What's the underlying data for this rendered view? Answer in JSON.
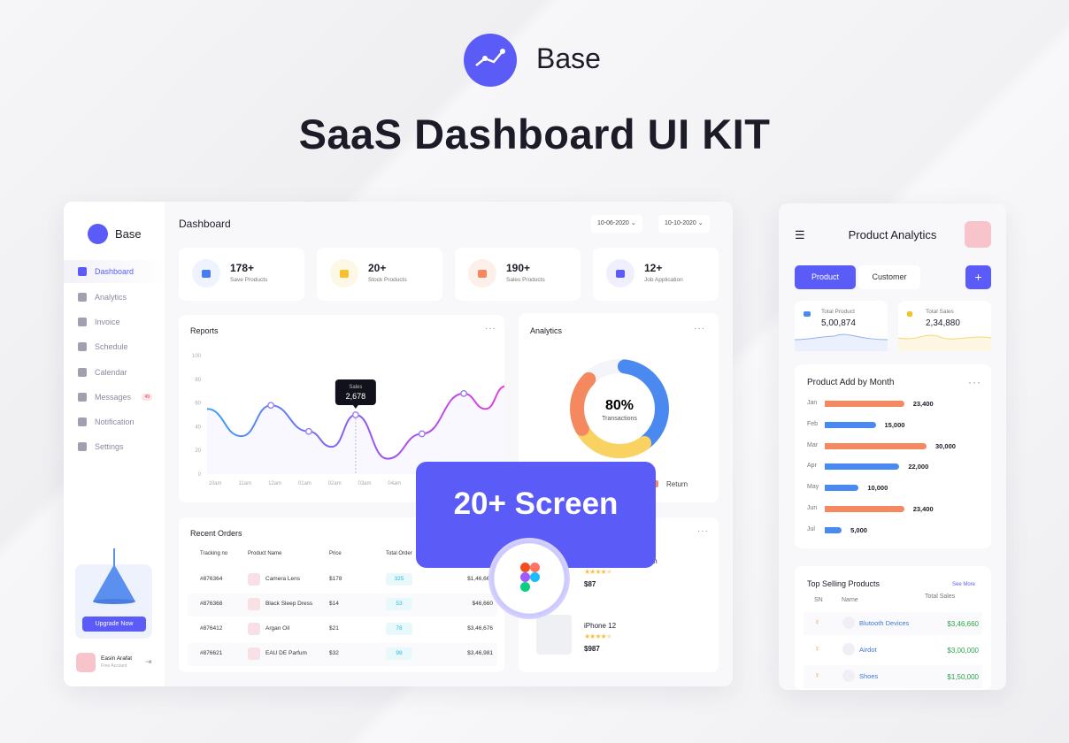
{
  "brand": {
    "name": "Base",
    "headline": "SaaS Dashboard UI KIT",
    "accent": "#5b5bf7"
  },
  "sidebar": {
    "logo": "Base",
    "items": [
      {
        "label": "Dashboard",
        "icon": "grid-icon",
        "active": true
      },
      {
        "label": "Analytics",
        "icon": "bar-chart-icon"
      },
      {
        "label": "Invoice",
        "icon": "invoice-icon"
      },
      {
        "label": "Schedule",
        "icon": "schedule-icon"
      },
      {
        "label": "Calendar",
        "icon": "calendar-icon"
      },
      {
        "label": "Messages",
        "icon": "messages-icon",
        "badge": "49"
      },
      {
        "label": "Notification",
        "icon": "bell-icon"
      },
      {
        "label": "Settings",
        "icon": "gear-icon"
      }
    ],
    "upgrade_label": "Upgrade Now",
    "user": {
      "name": "Easin Arafat",
      "plan": "Free Account"
    }
  },
  "header": {
    "title": "Dashboard",
    "date_from": "10-06-2020",
    "date_to": "10-10-2020"
  },
  "stats": [
    {
      "value": "178+",
      "label": "Save Products",
      "icon": "heart-icon",
      "color": "#4a7cf0",
      "bg": "#eef3fd"
    },
    {
      "value": "20+",
      "label": "Stock Products",
      "icon": "box-icon",
      "color": "#f6c02e",
      "bg": "#fdf8e6"
    },
    {
      "value": "190+",
      "label": "Sales Products",
      "icon": "bag-icon",
      "color": "#f4895f",
      "bg": "#fdf0eb"
    },
    {
      "value": "12+",
      "label": "Job Application",
      "icon": "briefcase-icon",
      "color": "#5b5bf7",
      "bg": "#efeffd"
    }
  ],
  "reports": {
    "title": "Reports",
    "menu": "···"
  },
  "chart_data": [
    {
      "type": "line",
      "title": "Reports",
      "yticks": [
        "0",
        "20",
        "40",
        "60",
        "80",
        "100"
      ],
      "ylim": [
        0,
        100
      ],
      "xticks": [
        "10am",
        "11am",
        "12am",
        "01am",
        "02am",
        "03am",
        "04am"
      ],
      "points": [
        {
          "x": "09:44am",
          "y": 55
        },
        {
          "x": "10:53am",
          "y": 32
        },
        {
          "x": "11:52am",
          "y": 58,
          "marker": true
        },
        {
          "x": "01:08am",
          "y": 36,
          "marker": true
        },
        {
          "x": "01:54am",
          "y": 23
        },
        {
          "x": "02:42am",
          "y": 50,
          "marker": true
        },
        {
          "x": "03:46am",
          "y": 13
        },
        {
          "x": "04:55am",
          "y": 34,
          "marker": true
        },
        {
          "x": "06:19am",
          "y": 68,
          "marker": true
        },
        {
          "x": "07:03am",
          "y": 55
        },
        {
          "x": "07:42am",
          "y": 74
        }
      ],
      "tooltip": {
        "label": "Sales",
        "value": "2,678",
        "at": "02:42am"
      },
      "gradient": [
        "#3fa0f0",
        "#8a5cf0",
        "#e040e0"
      ],
      "grid": false
    },
    {
      "type": "pie",
      "title": "Analytics",
      "center_value": "80%",
      "center_label": "Transactions",
      "segments": [
        {
          "percent": 38,
          "color": "#4a8af0"
        },
        {
          "percent": 27,
          "color": "#f9d262"
        },
        {
          "percent": 20,
          "color": "#f4895f",
          "name": "Return"
        }
      ]
    },
    {
      "type": "bar",
      "orientation": "horizontal",
      "title": "Product Add  by Month",
      "categories": [
        "Jan",
        "Feb",
        "Mar",
        "Apr",
        "May",
        "Jun",
        "Jul"
      ],
      "values": [
        23400,
        15000,
        30000,
        22000,
        10000,
        23400,
        5000
      ],
      "labels": [
        "23,400",
        "15,000",
        "30,000",
        "22,000",
        "10,000",
        "23,400",
        "5,000"
      ],
      "colors": [
        "#f4895f",
        "#4a8af0",
        "#f4895f",
        "#4a8af0",
        "#4a8af0",
        "#f4895f",
        "#4a8af0"
      ]
    }
  ],
  "analytics": {
    "title": "Analytics",
    "menu": "···",
    "legend_return": "Return"
  },
  "orders": {
    "title": "Recent Orders",
    "columns": [
      "Tracking no",
      "Product Name",
      "Price",
      "Total Order"
    ],
    "rows": [
      {
        "id": "#876364",
        "name": "Camera Lens",
        "price": "$178",
        "qty": "325",
        "total": "$1,46,660"
      },
      {
        "id": "#876368",
        "name": "Black Sleep Dress",
        "price": "$14",
        "qty": "53",
        "total": "$46,660"
      },
      {
        "id": "#876412",
        "name": "Argan Oil",
        "price": "$21",
        "qty": "78",
        "total": "$3,46,676"
      },
      {
        "id": "#876621",
        "name": "EAU DE Parfum",
        "price": "$32",
        "qty": "98",
        "total": "$3,46,981"
      }
    ]
  },
  "top_products": {
    "menu": "···",
    "items": [
      {
        "name": "m",
        "price": "$87",
        "rating": 4
      },
      {
        "name": "iPhone 12",
        "price": "$987",
        "rating": 4
      }
    ]
  },
  "banner": {
    "text": "20+ Screen",
    "icon": "figma-icon"
  },
  "mobile": {
    "title": "Product Analytics",
    "tabs": [
      "Product",
      "Customer"
    ],
    "add": "+",
    "totals": [
      {
        "label": "Total Product",
        "value": "5,00,874",
        "color": "#4a8af0"
      },
      {
        "label": "Total Sales",
        "value": "2,34,880",
        "color": "#f6c02e"
      }
    ],
    "bar_title": "Product Add  by Month",
    "bar_menu": "···",
    "top": {
      "title": "Top Selling Products",
      "see_more": "See More",
      "columns": [
        "SN",
        "Name",
        "Total Sales"
      ],
      "rows": [
        {
          "name": "Blutooth Devices",
          "sales": "$3,46,660"
        },
        {
          "name": "Airdot",
          "sales": "$3,00,000"
        },
        {
          "name": "Shoes",
          "sales": "$1,50,000"
        }
      ]
    }
  }
}
